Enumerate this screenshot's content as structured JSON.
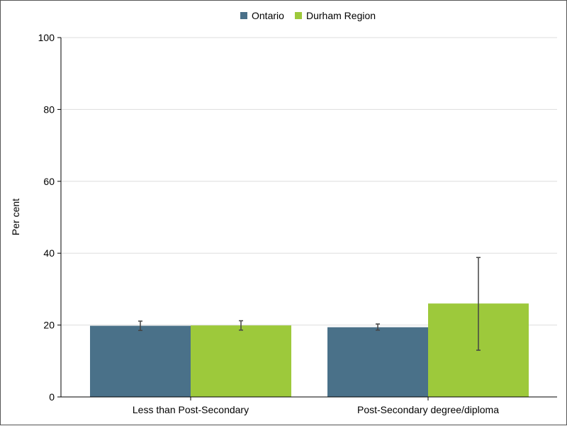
{
  "chart_data": {
    "type": "bar",
    "title": "",
    "xlabel": "",
    "ylabel": "Per cent",
    "ylim": [
      0,
      100
    ],
    "yticks": [
      0,
      20,
      40,
      60,
      80,
      100
    ],
    "grid": true,
    "legend_position": "top-center",
    "categories": [
      "Less than Post-Secondary",
      "Post-Secondary degree/diploma"
    ],
    "series": [
      {
        "name": "Ontario",
        "color": "#4a7189",
        "values": [
          19.8,
          19.4
        ],
        "error_low": [
          18.5,
          18.6
        ],
        "error_high": [
          21.1,
          20.3
        ]
      },
      {
        "name": "Durham Region",
        "color": "#9dc93b",
        "values": [
          19.9,
          26.0
        ],
        "error_low": [
          18.6,
          13.0
        ],
        "error_high": [
          21.2,
          38.8
        ]
      }
    ]
  }
}
